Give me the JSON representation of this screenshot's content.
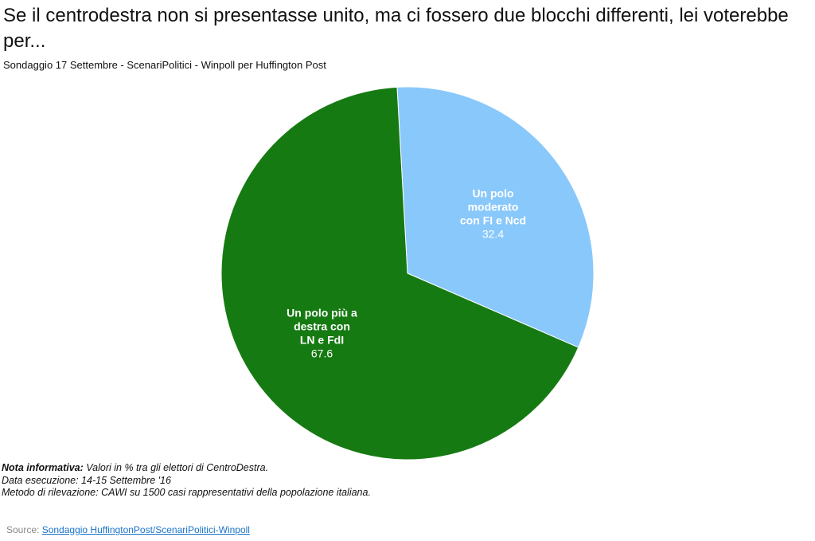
{
  "title": "Se il centrodestra non si presentasse unito, ma ci fossero due blocchi differenti, lei voterebbe per...",
  "subtitle": "Sondaggio 17 Settembre - ScenariPolitici - Winpoll per Huffington Post",
  "chart_data": {
    "type": "pie",
    "slices": [
      {
        "label_lines": [
          "Un polo",
          "moderato",
          "con FI e Ncd"
        ],
        "value": 32.4,
        "value_label": "32.4",
        "color": "#89c8fb"
      },
      {
        "label_lines": [
          "Un polo più a",
          "destra con",
          "LN e FdI"
        ],
        "value": 67.6,
        "value_label": "67.6",
        "color": "#167a12"
      }
    ]
  },
  "notes": {
    "line1_label": "Nota informativa:",
    "line1_text": " Valori in % tra gli elettori di CentroDestra.",
    "line2": "Data esecuzione: 14-15 Settembre '16",
    "line3": "Metodo di rilevazione: CAWI su 1500 casi rappresentativi della popolazione italiana."
  },
  "source": {
    "prefix": "Source: ",
    "link_text": "Sondaggio HuffingtonPost/ScenariPolitici-Winpoll"
  }
}
